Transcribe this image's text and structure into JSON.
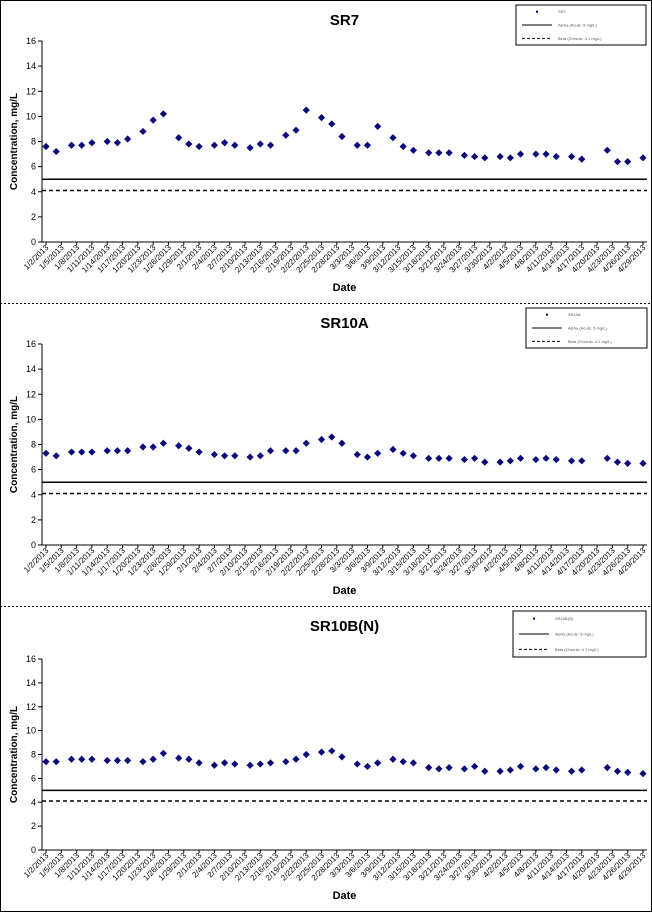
{
  "dates": [
    "1/2/2013",
    "1/5/2013",
    "1/8/2013",
    "1/11/2013",
    "1/14/2013",
    "1/17/2013",
    "1/20/2013",
    "1/23/2013",
    "1/26/2013",
    "1/29/2013",
    "2/1/2013",
    "2/4/2013",
    "2/7/2013",
    "2/10/2013",
    "2/13/2013",
    "2/16/2013",
    "2/19/2013",
    "2/22/2013",
    "2/25/2013",
    "2/28/2013",
    "3/3/2013",
    "3/6/2013",
    "3/9/2013",
    "3/12/2013",
    "3/15/2013",
    "3/18/2013",
    "3/21/2013",
    "3/24/2013",
    "3/27/2013",
    "3/30/2013",
    "4/2/2013",
    "4/5/2013",
    "4/8/2013",
    "4/11/2013",
    "4/14/2013",
    "4/17/2013",
    "4/20/2013",
    "4/23/2013",
    "4/26/2013",
    "4/29/2013"
  ],
  "colors": {
    "marker": "#0a0a7a",
    "line": "#000000"
  },
  "chart_data": [
    {
      "type": "scatter",
      "title": "SR7",
      "xlabel": "Date",
      "ylabel": "Concentration, mg/L",
      "ylim": [
        0,
        16
      ],
      "yticks": [
        0,
        2,
        4,
        6,
        8,
        10,
        12,
        14,
        16
      ],
      "xlim": [
        "1/2/2013",
        "4/29/2013"
      ],
      "legend_position": "top-right",
      "legend_entries": [
        "SR7",
        "Alpha (Acute: 5 mg/L)",
        "Beta (Chronic: 4.1 mg/L)"
      ],
      "reference_lines": [
        {
          "value": 5.0,
          "style": "solid"
        },
        {
          "value": 4.1,
          "style": "dashed"
        }
      ],
      "series": [
        {
          "x": [
            "1/2/2013",
            "1/4/2013",
            "1/7/2013",
            "1/9/2013",
            "1/11/2013",
            "1/14/2013",
            "1/16/2013",
            "1/18/2013",
            "1/21/2013",
            "1/23/2013",
            "1/25/2013",
            "1/28/2013",
            "1/30/2013",
            "2/1/2013",
            "2/4/2013",
            "2/6/2013",
            "2/8/2013",
            "2/11/2013",
            "2/13/2013",
            "2/15/2013",
            "2/18/2013",
            "2/20/2013",
            "2/22/2013",
            "2/25/2013",
            "2/27/2013",
            "3/1/2013",
            "3/4/2013",
            "3/6/2013",
            "3/8/2013",
            "3/11/2013",
            "3/13/2013",
            "3/15/2013",
            "3/18/2013",
            "3/20/2013",
            "3/22/2013",
            "3/25/2013",
            "3/27/2013",
            "3/29/2013",
            "4/1/2013",
            "4/3/2013",
            "4/5/2013",
            "4/8/2013",
            "4/10/2013",
            "4/12/2013",
            "4/15/2013",
            "4/17/2013",
            "4/22/2013",
            "4/24/2013",
            "4/26/2013",
            "4/29/2013"
          ],
          "y": [
            7.6,
            7.2,
            7.7,
            7.7,
            7.9,
            8.0,
            7.9,
            8.2,
            8.8,
            9.7,
            10.2,
            8.3,
            7.8,
            7.6,
            7.7,
            7.9,
            7.7,
            7.5,
            7.8,
            7.7,
            8.5,
            8.9,
            10.5,
            9.9,
            9.4,
            8.4,
            7.7,
            7.7,
            9.2,
            8.3,
            7.6,
            7.3,
            7.1,
            7.1,
            7.1,
            6.9,
            6.8,
            6.7,
            6.8,
            6.7,
            7.0,
            7.0,
            7.0,
            6.8,
            6.8,
            6.6,
            7.3,
            6.4,
            6.4,
            6.7
          ]
        }
      ]
    },
    {
      "type": "scatter",
      "title": "SR10A",
      "xlabel": "Date",
      "ylabel": "Concentration, mg/L",
      "ylim": [
        0,
        16
      ],
      "yticks": [
        0,
        2,
        4,
        6,
        8,
        10,
        12,
        14,
        16
      ],
      "xlim": [
        "1/2/2013",
        "4/29/2013"
      ],
      "legend_position": "top-right",
      "legend_entries": [
        "SR10A",
        "Alpha (Acute: 5 mg/L)",
        "Beta (Chronic: 4.1 mg/L)"
      ],
      "reference_lines": [
        {
          "value": 5.0,
          "style": "solid"
        },
        {
          "value": 4.1,
          "style": "dashed"
        }
      ],
      "series": [
        {
          "x": [
            "1/2/2013",
            "1/4/2013",
            "1/7/2013",
            "1/9/2013",
            "1/11/2013",
            "1/14/2013",
            "1/16/2013",
            "1/18/2013",
            "1/21/2013",
            "1/23/2013",
            "1/25/2013",
            "1/28/2013",
            "1/30/2013",
            "2/1/2013",
            "2/4/2013",
            "2/6/2013",
            "2/8/2013",
            "2/11/2013",
            "2/13/2013",
            "2/15/2013",
            "2/18/2013",
            "2/20/2013",
            "2/22/2013",
            "2/25/2013",
            "2/27/2013",
            "3/1/2013",
            "3/4/2013",
            "3/6/2013",
            "3/8/2013",
            "3/11/2013",
            "3/13/2013",
            "3/15/2013",
            "3/18/2013",
            "3/20/2013",
            "3/22/2013",
            "3/25/2013",
            "3/27/2013",
            "3/29/2013",
            "4/1/2013",
            "4/3/2013",
            "4/5/2013",
            "4/8/2013",
            "4/10/2013",
            "4/12/2013",
            "4/15/2013",
            "4/17/2013",
            "4/22/2013",
            "4/24/2013",
            "4/26/2013",
            "4/29/2013"
          ],
          "y": [
            7.3,
            7.1,
            7.4,
            7.4,
            7.4,
            7.5,
            7.5,
            7.5,
            7.8,
            7.8,
            8.1,
            7.9,
            7.7,
            7.4,
            7.2,
            7.1,
            7.1,
            7.0,
            7.1,
            7.5,
            7.5,
            7.5,
            8.1,
            8.4,
            8.6,
            8.1,
            7.2,
            7.0,
            7.3,
            7.6,
            7.3,
            7.1,
            6.9,
            6.9,
            6.9,
            6.8,
            6.9,
            6.6,
            6.6,
            6.7,
            6.9,
            6.8,
            6.9,
            6.8,
            6.7,
            6.7,
            6.9,
            6.6,
            6.5,
            6.5
          ]
        }
      ]
    },
    {
      "type": "scatter",
      "title": "SR10B(N)",
      "xlabel": "Date",
      "ylabel": "Concentration, mg/L",
      "ylim": [
        0,
        16
      ],
      "yticks": [
        0,
        2,
        4,
        6,
        8,
        10,
        12,
        14,
        16
      ],
      "xlim": [
        "1/2/2013",
        "4/29/2013"
      ],
      "legend_position": "top-right",
      "legend_entries": [
        "SR10B(N)",
        "Alpha (Acute: 5 mg/L)",
        "Beta (Chronic: 4.1 mg/L)"
      ],
      "reference_lines": [
        {
          "value": 5.0,
          "style": "solid"
        },
        {
          "value": 4.1,
          "style": "dashed"
        }
      ],
      "series": [
        {
          "x": [
            "1/2/2013",
            "1/4/2013",
            "1/7/2013",
            "1/9/2013",
            "1/11/2013",
            "1/14/2013",
            "1/16/2013",
            "1/18/2013",
            "1/21/2013",
            "1/23/2013",
            "1/25/2013",
            "1/28/2013",
            "1/30/2013",
            "2/1/2013",
            "2/4/2013",
            "2/6/2013",
            "2/8/2013",
            "2/11/2013",
            "2/13/2013",
            "2/15/2013",
            "2/18/2013",
            "2/20/2013",
            "2/22/2013",
            "2/25/2013",
            "2/27/2013",
            "3/1/2013",
            "3/4/2013",
            "3/6/2013",
            "3/8/2013",
            "3/11/2013",
            "3/13/2013",
            "3/15/2013",
            "3/18/2013",
            "3/20/2013",
            "3/22/2013",
            "3/25/2013",
            "3/27/2013",
            "3/29/2013",
            "4/1/2013",
            "4/3/2013",
            "4/5/2013",
            "4/8/2013",
            "4/10/2013",
            "4/12/2013",
            "4/15/2013",
            "4/17/2013",
            "4/22/2013",
            "4/24/2013",
            "4/26/2013",
            "4/29/2013"
          ],
          "y": [
            7.4,
            7.4,
            7.6,
            7.6,
            7.6,
            7.5,
            7.5,
            7.5,
            7.4,
            7.6,
            8.1,
            7.7,
            7.6,
            7.3,
            7.1,
            7.3,
            7.2,
            7.1,
            7.2,
            7.3,
            7.4,
            7.6,
            8.0,
            8.2,
            8.3,
            7.8,
            7.2,
            7.0,
            7.3,
            7.6,
            7.4,
            7.3,
            6.9,
            6.8,
            6.9,
            6.8,
            7.0,
            6.6,
            6.6,
            6.7,
            7.0,
            6.8,
            6.9,
            6.7,
            6.6,
            6.7,
            6.9,
            6.6,
            6.5,
            6.4
          ]
        }
      ]
    }
  ]
}
